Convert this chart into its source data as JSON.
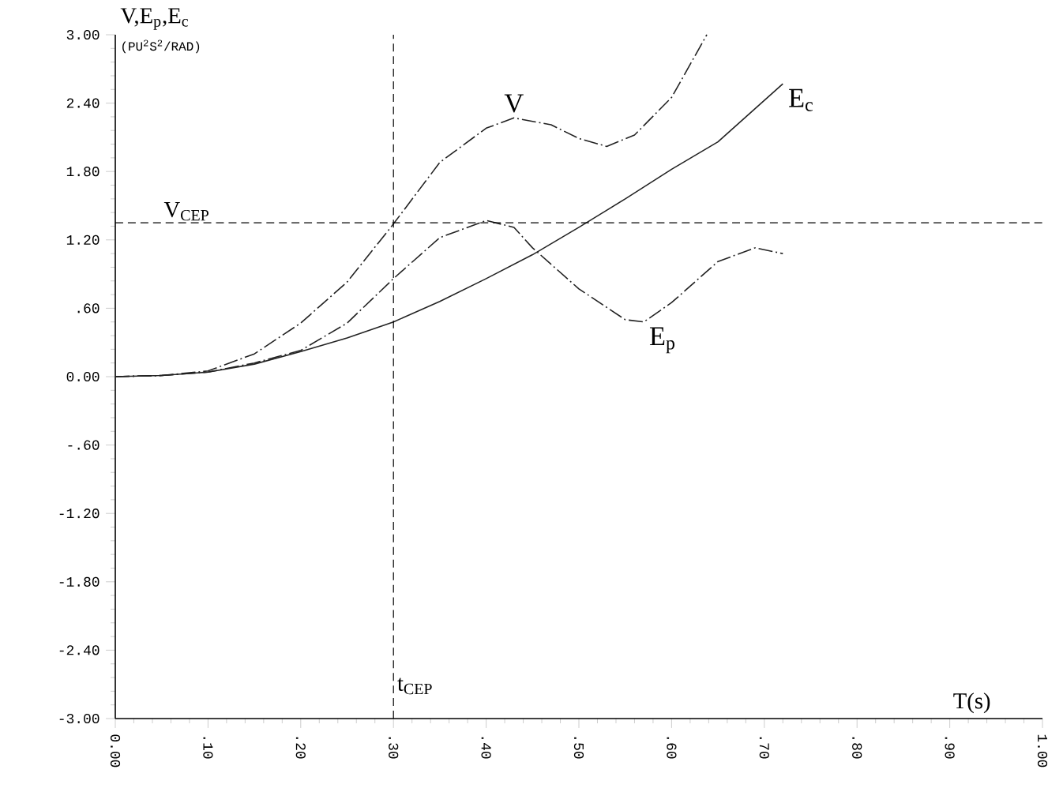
{
  "chart_data": {
    "type": "line",
    "ylabel": "V,E$_{p}$,E$_{c}$",
    "xlabel": "T(s)",
    "annotations": [
      "(PU$^{2}$S$^{2}$/RAD)"
    ],
    "xlim": [
      0,
      1
    ],
    "ylim": [
      -3,
      3
    ],
    "xticks": [
      {
        "value": 0,
        "label": "0.00"
      },
      {
        "value": 0.1,
        "label": ".10"
      },
      {
        "value": 0.2,
        "label": ".20"
      },
      {
        "value": 0.3,
        "label": ".30"
      },
      {
        "value": 0.4,
        "label": ".40"
      },
      {
        "value": 0.5,
        "label": ".50"
      },
      {
        "value": 0.6,
        "label": ".60"
      },
      {
        "value": 0.7,
        "label": ".70"
      },
      {
        "value": 0.8,
        "label": ".80"
      },
      {
        "value": 0.9,
        "label": ".90"
      },
      {
        "value": 1,
        "label": "1.00"
      }
    ],
    "yticks": [
      {
        "value": -3,
        "label": "-3.00"
      },
      {
        "value": -2.4,
        "label": "-2.40"
      },
      {
        "value": -1.8,
        "label": "-1.80"
      },
      {
        "value": -1.2,
        "label": "-1.20"
      },
      {
        "value": -0.6,
        "label": "-.60"
      },
      {
        "value": 0,
        "label": "0.00"
      },
      {
        "value": 0.6,
        "label": ".60"
      },
      {
        "value": 1.2,
        "label": "1.20"
      },
      {
        "value": 1.8,
        "label": "1.80"
      },
      {
        "value": 2.4,
        "label": "2.40"
      },
      {
        "value": 3,
        "label": "3.00"
      }
    ],
    "grid": false,
    "legend": false,
    "marker": "none",
    "series": [
      {
        "name": "V",
        "color": "#222222",
        "line_style": "dashed",
        "x": [
          0,
          0.05,
          0.1,
          0.15,
          0.2,
          0.25,
          0.3,
          0.35,
          0.4,
          0.43,
          0.47,
          0.5,
          0.53,
          0.56,
          0.6,
          0.638
        ],
        "values": [
          0,
          0.01,
          0.05,
          0.2,
          0.47,
          0.83,
          1.34,
          1.88,
          2.18,
          2.27,
          2.21,
          2.09,
          2.02,
          2.12,
          2.45,
          3.0
        ]
      },
      {
        "name": "E$_{p}$",
        "color": "#222222",
        "line_style": "dashed",
        "x": [
          0,
          0.05,
          0.1,
          0.15,
          0.2,
          0.25,
          0.3,
          0.35,
          0.4,
          0.43,
          0.45,
          0.5,
          0.55,
          0.57,
          0.6,
          0.65,
          0.69,
          0.72
        ],
        "values": [
          0,
          0.01,
          0.04,
          0.12,
          0.23,
          0.47,
          0.86,
          1.22,
          1.37,
          1.31,
          1.13,
          0.77,
          0.5,
          0.48,
          0.65,
          1.01,
          1.13,
          1.08
        ]
      },
      {
        "name": "E$_{c}$",
        "color": "#222222",
        "line_style": "solid",
        "x": [
          0,
          0.05,
          0.1,
          0.15,
          0.2,
          0.25,
          0.3,
          0.35,
          0.4,
          0.45,
          0.5,
          0.55,
          0.6,
          0.65,
          0.72
        ],
        "values": [
          0,
          0.01,
          0.04,
          0.11,
          0.22,
          0.34,
          0.48,
          0.66,
          0.86,
          1.07,
          1.31,
          1.56,
          1.82,
          2.06,
          2.57
        ]
      }
    ],
    "ref_lines": [
      {
        "axis": "y",
        "value": 1.35,
        "label": "V$_{CEP}$",
        "line_style": "dashed"
      },
      {
        "axis": "x",
        "value": 0.3,
        "label": "t$_{CEP}$",
        "line_style": "dashed"
      }
    ]
  }
}
